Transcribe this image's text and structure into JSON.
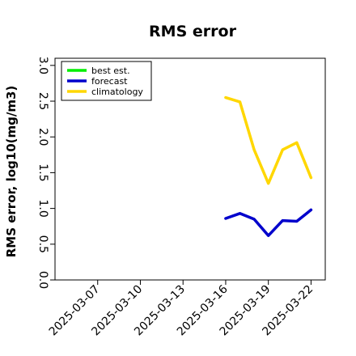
{
  "chart_data": {
    "type": "line",
    "title": "RMS error",
    "xlabel": "",
    "ylabel": "RMS error, log10(mg/m3)",
    "ylim": [
      0.0,
      3.1
    ],
    "xlim": [
      "2025-03-04",
      "2025-03-23"
    ],
    "y_ticks": [
      "0.0",
      "0.5",
      "1.0",
      "1.5",
      "2.0",
      "2.5",
      "3.0"
    ],
    "y_tick_values": [
      0.0,
      0.5,
      1.0,
      1.5,
      2.0,
      2.5,
      3.0
    ],
    "x_ticks": [
      {
        "label": "2025-03-07",
        "color": "#000000"
      },
      {
        "label": "2025-03-10",
        "color": "#000000"
      },
      {
        "label": "2025-03-13",
        "color": "#228B22"
      },
      {
        "label": "2025-03-16",
        "color": "#000000"
      },
      {
        "label": "2025-03-19",
        "color": "#000000"
      },
      {
        "label": "2025-03-22",
        "color": "#000000"
      }
    ],
    "grid": false,
    "legend_position": "top-left",
    "series": [
      {
        "name": "best est.",
        "color": "#00ee00",
        "x": [],
        "y": []
      },
      {
        "name": "forecast",
        "color": "#0000cc",
        "x": [
          "2025-03-16",
          "2025-03-17",
          "2025-03-18",
          "2025-03-19",
          "2025-03-20",
          "2025-03-21",
          "2025-03-22"
        ],
        "y": [
          0.86,
          0.93,
          0.85,
          0.62,
          0.83,
          0.82,
          0.98
        ]
      },
      {
        "name": "climatology",
        "color": "#ffd700",
        "x": [
          "2025-03-16",
          "2025-03-17",
          "2025-03-18",
          "2025-03-19",
          "2025-03-20",
          "2025-03-21",
          "2025-03-22"
        ],
        "y": [
          2.55,
          2.49,
          1.82,
          1.35,
          1.82,
          1.92,
          1.43
        ]
      }
    ]
  }
}
